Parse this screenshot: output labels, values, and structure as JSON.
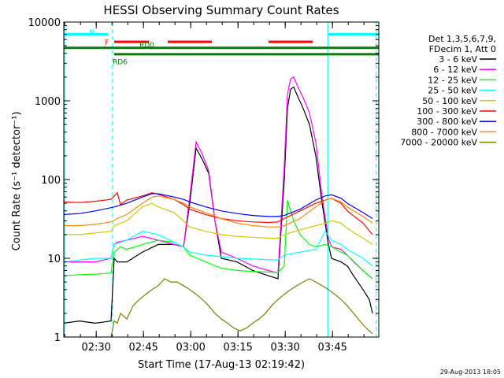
{
  "chart_data": {
    "type": "line",
    "title": "HESSI Observing Summary Count Rates",
    "xlabel": "Start Time (17-Aug-13 02:19:42)",
    "ylabel": "Count Rate (s⁻¹ detector⁻¹)",
    "x_units": "minutes since 02:19:42",
    "xlim": [
      0,
      100
    ],
    "ylim": [
      1,
      10000
    ],
    "yscale": "log",
    "x_ticks": [
      {
        "x": 10.3,
        "label": "02:30"
      },
      {
        "x": 25.3,
        "label": "02:45"
      },
      {
        "x": 40.3,
        "label": "03:00"
      },
      {
        "x": 55.3,
        "label": "03:15"
      },
      {
        "x": 70.3,
        "label": "03:30"
      },
      {
        "x": 85.3,
        "label": "03:45"
      }
    ],
    "y_ticks": [
      {
        "y": 1,
        "label": "1"
      },
      {
        "y": 10,
        "label": "10"
      },
      {
        "y": 100,
        "label": "100"
      },
      {
        "y": 1000,
        "label": "1000"
      },
      {
        "y": 10000,
        "label": "10000"
      }
    ],
    "legend": {
      "placement": "right",
      "header": [
        "Det 1,3,5,6,7,9,",
        "FDecim 1, Att 0"
      ]
    },
    "series": [
      {
        "name": "3 - 6 keV",
        "color": "#000000",
        "x": [
          0,
          5,
          10,
          15,
          16,
          17,
          20,
          25,
          30,
          35,
          38,
          40,
          42,
          44,
          46,
          48,
          50,
          55,
          60,
          65,
          68,
          70,
          71,
          72,
          73,
          74,
          76,
          78,
          80,
          82,
          84,
          85,
          88,
          90,
          92,
          95,
          97,
          98
        ],
        "y": [
          1.5,
          1.6,
          1.5,
          1.6,
          10,
          9,
          9,
          12,
          15,
          15,
          14,
          50,
          250,
          180,
          120,
          30,
          10,
          9,
          7,
          6,
          5.5,
          100,
          800,
          1400,
          1500,
          1200,
          800,
          500,
          200,
          50,
          15,
          10,
          9,
          8,
          6,
          4,
          3,
          2
        ]
      },
      {
        "name": "6 - 12 keV",
        "color": "#ff00ff",
        "x": [
          0,
          5,
          10,
          15,
          16,
          17,
          20,
          25,
          30,
          35,
          38,
          40,
          42,
          44,
          46,
          48,
          50,
          55,
          60,
          65,
          68,
          70,
          71,
          72,
          73,
          74,
          76,
          78,
          80,
          82,
          84,
          85,
          88,
          90,
          92,
          95,
          97,
          98
        ],
        "y": [
          9,
          9,
          9,
          10,
          15,
          16,
          17,
          19,
          17,
          15,
          14,
          60,
          300,
          210,
          130,
          30,
          12,
          10,
          8,
          7,
          6.5,
          150,
          1200,
          1900,
          2000,
          1600,
          1100,
          700,
          300,
          60,
          18,
          14,
          13,
          11,
          9,
          7,
          6,
          5.5
        ]
      },
      {
        "name": "12 - 25 keV",
        "color": "#00ff00",
        "x": [
          0,
          5,
          10,
          15,
          16,
          18,
          20,
          25,
          30,
          35,
          38,
          40,
          45,
          50,
          55,
          60,
          65,
          68,
          70,
          71,
          72,
          73,
          75,
          78,
          80,
          83,
          85,
          88,
          90,
          95,
          98
        ],
        "y": [
          6,
          6.2,
          6.3,
          6.5,
          12,
          14,
          13,
          15,
          17,
          16,
          14,
          11,
          9,
          7.5,
          7,
          6.8,
          6.7,
          6.6,
          8,
          55,
          40,
          30,
          20,
          15,
          14,
          15,
          14,
          12,
          11,
          7,
          5.5
        ]
      },
      {
        "name": "25 - 50 keV",
        "color": "#00ffff",
        "x": [
          0,
          5,
          10,
          15,
          16,
          20,
          25,
          30,
          35,
          38,
          40,
          45,
          50,
          55,
          60,
          65,
          68,
          70,
          75,
          80,
          83,
          85,
          88,
          90,
          95,
          98
        ],
        "y": [
          9,
          9.5,
          10,
          10,
          15,
          17,
          22,
          20,
          16,
          14,
          12,
          11,
          10.5,
          10,
          9.8,
          9.6,
          9.5,
          11,
          12,
          13,
          22,
          17,
          15,
          13,
          10,
          8
        ]
      },
      {
        "name": "50 - 100 keV",
        "color": "#cccc00",
        "x": [
          0,
          5,
          10,
          15,
          16,
          20,
          25,
          28,
          30,
          35,
          38,
          40,
          45,
          50,
          55,
          60,
          65,
          68,
          70,
          75,
          80,
          83,
          85,
          88,
          90,
          95,
          98
        ],
        "y": [
          20,
          20,
          21,
          22,
          26,
          30,
          45,
          50,
          45,
          38,
          30,
          25,
          22,
          20,
          19,
          18.5,
          18,
          18,
          20,
          23,
          26,
          28,
          30,
          28,
          24,
          18,
          15
        ]
      },
      {
        "name": "100 - 300 keV",
        "color": "#ff0000",
        "x": [
          0,
          5,
          10,
          15,
          17,
          18,
          20,
          25,
          28,
          30,
          35,
          38,
          40,
          45,
          50,
          55,
          60,
          65,
          68,
          70,
          75,
          80,
          83,
          85,
          88,
          90,
          95,
          98
        ],
        "y": [
          52,
          51,
          53,
          56,
          68,
          48,
          55,
          62,
          68,
          65,
          56,
          48,
          42,
          36,
          32,
          30,
          29,
          28.5,
          29,
          32,
          40,
          50,
          55,
          58,
          50,
          40,
          28,
          20
        ]
      },
      {
        "name": "300 - 800 keV",
        "color": "#0000ff",
        "x": [
          0,
          5,
          10,
          15,
          17,
          20,
          25,
          28,
          30,
          35,
          38,
          40,
          45,
          50,
          55,
          60,
          65,
          68,
          70,
          75,
          80,
          83,
          85,
          88,
          90,
          95,
          98
        ],
        "y": [
          36,
          37,
          40,
          44,
          46,
          50,
          60,
          66,
          66,
          60,
          56,
          52,
          45,
          40,
          37,
          35,
          34,
          34,
          35,
          42,
          55,
          62,
          64,
          58,
          50,
          38,
          32
        ]
      },
      {
        "name": "800 - 7000 keV",
        "color": "#ff8800",
        "x": [
          0,
          5,
          10,
          15,
          17,
          20,
          25,
          28,
          30,
          35,
          38,
          40,
          45,
          50,
          55,
          60,
          65,
          68,
          70,
          75,
          80,
          83,
          85,
          88,
          90,
          95,
          98
        ],
        "y": [
          26,
          26,
          27,
          29,
          32,
          36,
          50,
          60,
          62,
          56,
          50,
          45,
          38,
          32,
          28,
          26,
          25,
          25,
          26,
          32,
          45,
          55,
          58,
          52,
          45,
          34,
          28
        ]
      },
      {
        "name": "7000 - 20000 keV",
        "color": "#808000",
        "x": [
          0,
          15,
          16,
          17,
          18,
          20,
          22,
          24,
          26,
          28,
          30,
          32,
          34,
          36,
          38,
          40,
          42,
          44,
          46,
          48,
          50,
          52,
          54,
          56,
          58,
          60,
          62,
          64,
          66,
          68,
          70,
          72,
          74,
          76,
          78,
          80,
          82,
          84,
          86,
          88,
          90,
          92,
          94,
          96,
          98
        ],
        "y": [
          1,
          1,
          1.6,
          1.5,
          2,
          1.7,
          2.5,
          3,
          3.5,
          4,
          4.5,
          5.5,
          5,
          5,
          4.5,
          4,
          3.5,
          3,
          2.5,
          2,
          1.7,
          1.5,
          1.3,
          1.2,
          1.3,
          1.5,
          1.7,
          2,
          2.5,
          3,
          3.5,
          4,
          4.5,
          5,
          5.5,
          5,
          4.5,
          4,
          3.5,
          3,
          2.5,
          2,
          1.6,
          1.3,
          1.1
        ]
      }
    ],
    "flags": [
      {
        "label": "N",
        "color": "#00ffff",
        "y": 7000,
        "segments": [
          [
            0,
            14
          ],
          [
            84,
            100
          ]
        ]
      },
      {
        "label": "F",
        "color": "#ff0000",
        "y": 5600,
        "segments": [
          [
            16,
            27
          ],
          [
            33,
            47
          ],
          [
            65,
            79
          ]
        ]
      },
      {
        "label": "RD0",
        "color": "#008000",
        "y": 4700,
        "segments": [
          [
            0,
            100
          ]
        ]
      },
      {
        "label": "RD6",
        "color": "#008000",
        "y": 3900,
        "segments": [
          [
            16,
            50
          ],
          [
            50,
            65
          ],
          [
            65,
            100
          ]
        ]
      }
    ],
    "vertical_markers": [
      {
        "x": 0.2,
        "style": "solid",
        "color": "#00ffff"
      },
      {
        "x": 15.5,
        "style": "dashed",
        "color": "#00ffff"
      },
      {
        "x": 83.8,
        "style": "solid",
        "color": "#00ffff"
      },
      {
        "x": 99.2,
        "style": "dashed",
        "color": "#00ffff"
      }
    ],
    "footer": "29-Aug-2013 18:05"
  }
}
